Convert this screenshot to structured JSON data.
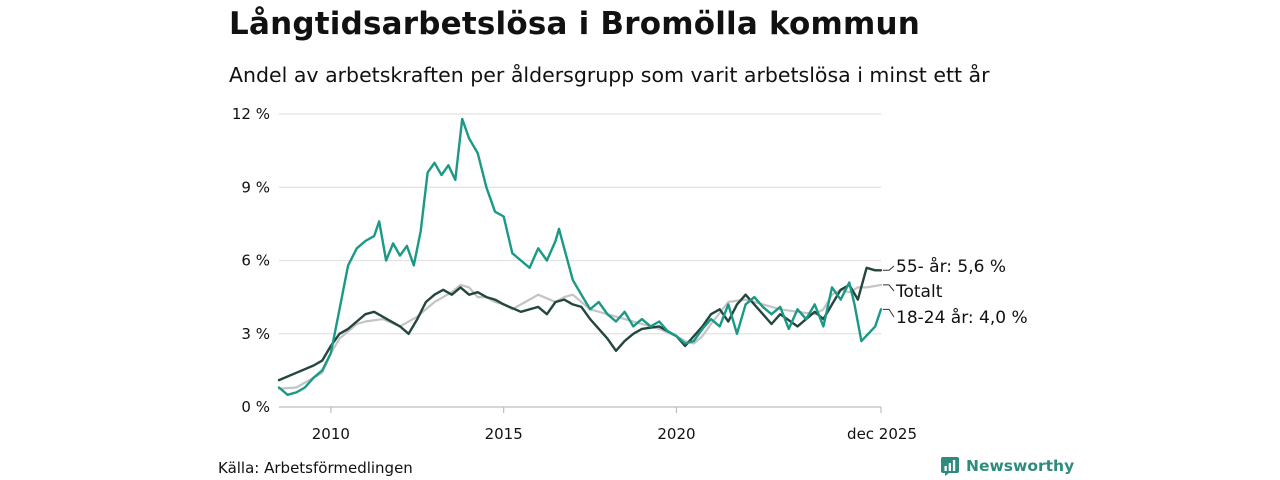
{
  "title": "Långtidsarbetslösa i Bromölla kommun",
  "subtitle": "Andel av arbetskraften per åldersgrupp som varit arbetslösa i minst ett år",
  "source": "Källa: Arbetsförmedlingen",
  "brand": {
    "name": "Newsworthy",
    "color": "#2e8b7e"
  },
  "chart_data": {
    "type": "line",
    "title": "Långtidsarbetslösa i Bromölla kommun",
    "ylabel": "",
    "xlabel": "",
    "ylim": [
      0,
      12
    ],
    "xlim": [
      2008.5,
      2025.917
    ],
    "yticks": [
      0,
      3,
      6,
      9,
      12
    ],
    "ytick_labels": [
      "0 %",
      "3 %",
      "6 %",
      "9 %",
      "12 %"
    ],
    "xticks": [
      2010,
      2015,
      2020,
      2025.917
    ],
    "xtick_labels": [
      "2010",
      "2015",
      "2020",
      "dec 2025"
    ],
    "grid": true,
    "series": [
      {
        "name": "Totalt",
        "label": "Totalt",
        "color": "#c4c4c4",
        "points": [
          [
            2008.5,
            0.75
          ],
          [
            2009.0,
            0.8
          ],
          [
            2009.5,
            1.2
          ],
          [
            2009.75,
            1.4
          ],
          [
            2010.0,
            2.2
          ],
          [
            2010.25,
            2.8
          ],
          [
            2010.5,
            3.1
          ],
          [
            2010.75,
            3.4
          ],
          [
            2011.0,
            3.5
          ],
          [
            2011.5,
            3.6
          ],
          [
            2012.0,
            3.3
          ],
          [
            2012.5,
            3.7
          ],
          [
            2012.75,
            4.0
          ],
          [
            2013.0,
            4.3
          ],
          [
            2013.25,
            4.5
          ],
          [
            2013.5,
            4.7
          ],
          [
            2013.75,
            5.0
          ],
          [
            2014.0,
            4.9
          ],
          [
            2014.25,
            4.5
          ],
          [
            2014.5,
            4.5
          ],
          [
            2014.75,
            4.3
          ],
          [
            2015.0,
            4.2
          ],
          [
            2015.25,
            4.0
          ],
          [
            2015.5,
            4.2
          ],
          [
            2015.75,
            4.4
          ],
          [
            2016.0,
            4.6
          ],
          [
            2016.5,
            4.3
          ],
          [
            2016.75,
            4.5
          ],
          [
            2017.0,
            4.6
          ],
          [
            2017.5,
            4.0
          ],
          [
            2018.0,
            3.8
          ],
          [
            2018.5,
            3.6
          ],
          [
            2019.0,
            3.4
          ],
          [
            2019.5,
            3.2
          ],
          [
            2020.0,
            2.9
          ],
          [
            2020.25,
            2.7
          ],
          [
            2020.5,
            2.6
          ],
          [
            2020.75,
            2.9
          ],
          [
            2021.0,
            3.4
          ],
          [
            2021.5,
            4.3
          ],
          [
            2022.0,
            4.4
          ],
          [
            2022.5,
            4.2
          ],
          [
            2023.0,
            4.0
          ],
          [
            2023.5,
            3.9
          ],
          [
            2024.0,
            3.8
          ],
          [
            2024.25,
            4.0
          ],
          [
            2024.5,
            4.6
          ],
          [
            2024.75,
            4.8
          ],
          [
            2025.0,
            4.7
          ],
          [
            2025.25,
            4.9
          ],
          [
            2025.5,
            4.9
          ],
          [
            2025.917,
            5.0
          ]
        ],
        "end_value": 5.0
      },
      {
        "name": "55- år",
        "label": "55- år: 5,6 %",
        "color": "#24463f",
        "points": [
          [
            2008.5,
            1.1
          ],
          [
            2009.0,
            1.4
          ],
          [
            2009.5,
            1.7
          ],
          [
            2009.75,
            1.9
          ],
          [
            2010.0,
            2.5
          ],
          [
            2010.25,
            3.0
          ],
          [
            2010.5,
            3.2
          ],
          [
            2010.75,
            3.5
          ],
          [
            2011.0,
            3.8
          ],
          [
            2011.25,
            3.9
          ],
          [
            2011.5,
            3.7
          ],
          [
            2012.0,
            3.3
          ],
          [
            2012.25,
            3.0
          ],
          [
            2012.5,
            3.6
          ],
          [
            2012.75,
            4.3
          ],
          [
            2013.0,
            4.6
          ],
          [
            2013.25,
            4.8
          ],
          [
            2013.5,
            4.6
          ],
          [
            2013.75,
            4.9
          ],
          [
            2014.0,
            4.6
          ],
          [
            2014.25,
            4.7
          ],
          [
            2014.5,
            4.5
          ],
          [
            2014.75,
            4.4
          ],
          [
            2015.0,
            4.2
          ],
          [
            2015.5,
            3.9
          ],
          [
            2016.0,
            4.1
          ],
          [
            2016.25,
            3.8
          ],
          [
            2016.5,
            4.3
          ],
          [
            2016.75,
            4.4
          ],
          [
            2017.0,
            4.2
          ],
          [
            2017.25,
            4.1
          ],
          [
            2017.5,
            3.6
          ],
          [
            2018.0,
            2.8
          ],
          [
            2018.25,
            2.3
          ],
          [
            2018.5,
            2.7
          ],
          [
            2018.75,
            3.0
          ],
          [
            2019.0,
            3.2
          ],
          [
            2019.5,
            3.3
          ],
          [
            2020.0,
            2.9
          ],
          [
            2020.25,
            2.5
          ],
          [
            2020.5,
            2.9
          ],
          [
            2020.75,
            3.3
          ],
          [
            2021.0,
            3.8
          ],
          [
            2021.25,
            4.0
          ],
          [
            2021.5,
            3.5
          ],
          [
            2021.75,
            4.2
          ],
          [
            2022.0,
            4.6
          ],
          [
            2022.25,
            4.2
          ],
          [
            2022.5,
            3.8
          ],
          [
            2022.75,
            3.4
          ],
          [
            2023.0,
            3.8
          ],
          [
            2023.5,
            3.3
          ],
          [
            2024.0,
            3.9
          ],
          [
            2024.25,
            3.6
          ],
          [
            2024.5,
            4.2
          ],
          [
            2024.75,
            4.8
          ],
          [
            2025.0,
            5.0
          ],
          [
            2025.25,
            4.4
          ],
          [
            2025.5,
            5.7
          ],
          [
            2025.75,
            5.6
          ],
          [
            2025.917,
            5.6
          ]
        ],
        "end_value": 5.6
      },
      {
        "name": "18-24 år",
        "label": "18-24 år: 4,0 %",
        "color": "#1a9985",
        "points": [
          [
            2008.5,
            0.8
          ],
          [
            2008.75,
            0.5
          ],
          [
            2009.0,
            0.6
          ],
          [
            2009.25,
            0.8
          ],
          [
            2009.5,
            1.2
          ],
          [
            2009.75,
            1.5
          ],
          [
            2010.0,
            2.2
          ],
          [
            2010.25,
            4.0
          ],
          [
            2010.5,
            5.8
          ],
          [
            2010.75,
            6.5
          ],
          [
            2011.0,
            6.8
          ],
          [
            2011.25,
            7.0
          ],
          [
            2011.4,
            7.6
          ],
          [
            2011.6,
            6.0
          ],
          [
            2011.8,
            6.7
          ],
          [
            2012.0,
            6.2
          ],
          [
            2012.2,
            6.6
          ],
          [
            2012.4,
            5.8
          ],
          [
            2012.6,
            7.2
          ],
          [
            2012.8,
            9.6
          ],
          [
            2013.0,
            10.0
          ],
          [
            2013.2,
            9.5
          ],
          [
            2013.4,
            9.9
          ],
          [
            2013.6,
            9.3
          ],
          [
            2013.8,
            11.8
          ],
          [
            2014.0,
            11.0
          ],
          [
            2014.25,
            10.4
          ],
          [
            2014.5,
            9.0
          ],
          [
            2014.75,
            8.0
          ],
          [
            2015.0,
            7.8
          ],
          [
            2015.25,
            6.3
          ],
          [
            2015.5,
            6.0
          ],
          [
            2015.75,
            5.7
          ],
          [
            2016.0,
            6.5
          ],
          [
            2016.25,
            6.0
          ],
          [
            2016.5,
            6.8
          ],
          [
            2016.6,
            7.3
          ],
          [
            2016.75,
            6.5
          ],
          [
            2017.0,
            5.2
          ],
          [
            2017.25,
            4.6
          ],
          [
            2017.5,
            4.0
          ],
          [
            2017.75,
            4.3
          ],
          [
            2018.0,
            3.8
          ],
          [
            2018.25,
            3.5
          ],
          [
            2018.5,
            3.9
          ],
          [
            2018.75,
            3.3
          ],
          [
            2019.0,
            3.6
          ],
          [
            2019.25,
            3.3
          ],
          [
            2019.5,
            3.5
          ],
          [
            2019.75,
            3.1
          ],
          [
            2020.0,
            2.9
          ],
          [
            2020.25,
            2.6
          ],
          [
            2020.5,
            2.7
          ],
          [
            2020.75,
            3.2
          ],
          [
            2021.0,
            3.6
          ],
          [
            2021.25,
            3.3
          ],
          [
            2021.5,
            4.2
          ],
          [
            2021.75,
            3.0
          ],
          [
            2022.0,
            4.2
          ],
          [
            2022.25,
            4.5
          ],
          [
            2022.5,
            4.1
          ],
          [
            2022.75,
            3.8
          ],
          [
            2023.0,
            4.1
          ],
          [
            2023.25,
            3.2
          ],
          [
            2023.5,
            4.0
          ],
          [
            2023.75,
            3.6
          ],
          [
            2024.0,
            4.2
          ],
          [
            2024.25,
            3.3
          ],
          [
            2024.5,
            4.9
          ],
          [
            2024.75,
            4.4
          ],
          [
            2025.0,
            5.1
          ],
          [
            2025.15,
            4.2
          ],
          [
            2025.35,
            2.7
          ],
          [
            2025.55,
            3.0
          ],
          [
            2025.75,
            3.3
          ],
          [
            2025.917,
            4.0
          ]
        ],
        "end_value": 4.0
      }
    ]
  }
}
